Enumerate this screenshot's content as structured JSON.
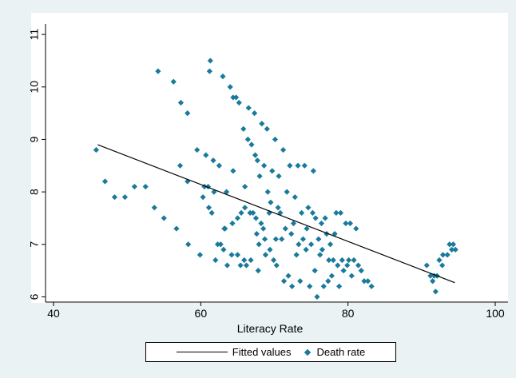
{
  "chart_data": {
    "type": "scatter",
    "xlabel": "Literacy Rate",
    "ylabel": "",
    "xlim": [
      40,
      100
    ],
    "ylim": [
      5.9,
      11.2
    ],
    "xticks": [
      40,
      60,
      80,
      100
    ],
    "yticks": [
      6,
      7,
      8,
      9,
      10,
      11
    ],
    "grid": false,
    "legend_position": "bottom",
    "colors": {
      "scatter": "#1a7a9c",
      "fit": "#000000",
      "background": "#eaf2f3",
      "plot": "#ffffff"
    },
    "fit_line": {
      "name": "Fitted values",
      "x": [
        46,
        94.5
      ],
      "y": [
        8.9,
        6.27
      ]
    },
    "series": [
      {
        "name": "Death rate",
        "points": [
          [
            45.8,
            8.8
          ],
          [
            47,
            8.2
          ],
          [
            48.3,
            7.9
          ],
          [
            49.7,
            7.9
          ],
          [
            51,
            8.1
          ],
          [
            52.5,
            8.1
          ],
          [
            53.7,
            7.7
          ],
          [
            54.2,
            10.3
          ],
          [
            55,
            7.5
          ],
          [
            56.3,
            10.1
          ],
          [
            56.7,
            7.3
          ],
          [
            57.3,
            9.7
          ],
          [
            57.2,
            8.5
          ],
          [
            58.2,
            9.5
          ],
          [
            58.3,
            7.0
          ],
          [
            58.2,
            8.2
          ],
          [
            59.5,
            8.8
          ],
          [
            59.9,
            6.8
          ],
          [
            60.5,
            8.1
          ],
          [
            60.3,
            7.9
          ],
          [
            60.7,
            8.7
          ],
          [
            61,
            8.1
          ],
          [
            61.1,
            7.7
          ],
          [
            61.5,
            7.6
          ],
          [
            61.8,
            8.0
          ],
          [
            61.3,
            10.5
          ],
          [
            61.2,
            10.3
          ],
          [
            61.7,
            8.6
          ],
          [
            62,
            6.7
          ],
          [
            62.3,
            7.0
          ],
          [
            62.7,
            7.0
          ],
          [
            62.5,
            8.5
          ],
          [
            63.1,
            6.9
          ],
          [
            63.2,
            7.3
          ],
          [
            63,
            10.2
          ],
          [
            63.3,
            7.3
          ],
          [
            63.5,
            8.0
          ],
          [
            63.6,
            6.6
          ],
          [
            64,
            10.0
          ],
          [
            64.2,
            6.8
          ],
          [
            64.4,
            9.8
          ],
          [
            64.3,
            7.4
          ],
          [
            64.4,
            8.4
          ],
          [
            64.8,
            9.8
          ],
          [
            65,
            6.8
          ],
          [
            65.2,
            9.7
          ],
          [
            65,
            7.5
          ],
          [
            65.4,
            6.6
          ],
          [
            65.5,
            7.6
          ],
          [
            65.8,
            9.2
          ],
          [
            65.9,
            6.7
          ],
          [
            66,
            8.1
          ],
          [
            66,
            7.7
          ],
          [
            66.2,
            6.6
          ],
          [
            66.4,
            9.0
          ],
          [
            66.5,
            9.6
          ],
          [
            66.7,
            7.6
          ],
          [
            66.8,
            6.7
          ],
          [
            66.9,
            8.9
          ],
          [
            67.1,
            7.6
          ],
          [
            67.3,
            9.5
          ],
          [
            67.4,
            8.7
          ],
          [
            67.5,
            7.5
          ],
          [
            67.6,
            7.2
          ],
          [
            67.7,
            8.6
          ],
          [
            67.8,
            6.5
          ],
          [
            67.9,
            7.0
          ],
          [
            68,
            8.3
          ],
          [
            68.2,
            7.4
          ],
          [
            68.3,
            9.3
          ],
          [
            68.5,
            7.3
          ],
          [
            68.6,
            8.5
          ],
          [
            68.7,
            7.1
          ],
          [
            68.8,
            6.8
          ],
          [
            69,
            9.2
          ],
          [
            69.1,
            8.0
          ],
          [
            69.3,
            7.6
          ],
          [
            69.4,
            6.9
          ],
          [
            69.5,
            7.8
          ],
          [
            69.7,
            8.4
          ],
          [
            69.9,
            6.7
          ],
          [
            70.1,
            9.0
          ],
          [
            70.2,
            7.1
          ],
          [
            70.3,
            6.6
          ],
          [
            70.5,
            7.7
          ],
          [
            70.6,
            8.3
          ],
          [
            70.8,
            7.6
          ],
          [
            71,
            7.1
          ],
          [
            71.2,
            8.8
          ],
          [
            71.3,
            6.3
          ],
          [
            71.5,
            7.3
          ],
          [
            71.7,
            8.0
          ],
          [
            71.9,
            6.4
          ],
          [
            72.1,
            8.5
          ],
          [
            72.3,
            7.2
          ],
          [
            72.4,
            6.2
          ],
          [
            72.6,
            7.4
          ],
          [
            72.8,
            7.9
          ],
          [
            73,
            6.8
          ],
          [
            73.2,
            8.5
          ],
          [
            73.3,
            7.0
          ],
          [
            73.5,
            6.3
          ],
          [
            73.7,
            7.6
          ],
          [
            73.9,
            7.1
          ],
          [
            74.1,
            8.5
          ],
          [
            74.3,
            6.9
          ],
          [
            74.4,
            7.3
          ],
          [
            74.6,
            7.7
          ],
          [
            74.8,
            6.2
          ],
          [
            75,
            7.0
          ],
          [
            75.2,
            7.6
          ],
          [
            75.3,
            8.4
          ],
          [
            75.5,
            6.5
          ],
          [
            75.6,
            7.5
          ],
          [
            75.8,
            6.0
          ],
          [
            76,
            7.1
          ],
          [
            76.2,
            6.8
          ],
          [
            76.4,
            7.4
          ],
          [
            76.5,
            6.9
          ],
          [
            76.7,
            6.2
          ],
          [
            76.9,
            7.5
          ],
          [
            77.1,
            7.2
          ],
          [
            77.3,
            6.3
          ],
          [
            77.4,
            6.7
          ],
          [
            77.6,
            7.0
          ],
          [
            77.8,
            6.4
          ],
          [
            78,
            6.7
          ],
          [
            78.2,
            7.2
          ],
          [
            78.4,
            7.6
          ],
          [
            78.6,
            6.6
          ],
          [
            78.8,
            6.2
          ],
          [
            79,
            7.6
          ],
          [
            79.2,
            6.7
          ],
          [
            79.4,
            6.5
          ],
          [
            79.7,
            7.4
          ],
          [
            79.9,
            6.6
          ],
          [
            80.1,
            6.7
          ],
          [
            80.3,
            7.4
          ],
          [
            80.5,
            6.4
          ],
          [
            80.8,
            6.7
          ],
          [
            81.1,
            7.3
          ],
          [
            81.4,
            6.6
          ],
          [
            81.8,
            6.5
          ],
          [
            82.2,
            6.3
          ],
          [
            82.7,
            6.3
          ],
          [
            83.2,
            6.2
          ],
          [
            90.7,
            6.6
          ],
          [
            91.2,
            6.4
          ],
          [
            91.5,
            6.3
          ],
          [
            91.7,
            6.4
          ],
          [
            91.9,
            6.1
          ],
          [
            92.1,
            6.4
          ],
          [
            92.4,
            6.7
          ],
          [
            92.8,
            6.6
          ],
          [
            92.9,
            6.8
          ],
          [
            93.5,
            6.8
          ],
          [
            93.8,
            7.0
          ],
          [
            94.1,
            6.9
          ],
          [
            94.3,
            7.0
          ],
          [
            94.6,
            6.9
          ]
        ]
      }
    ]
  }
}
